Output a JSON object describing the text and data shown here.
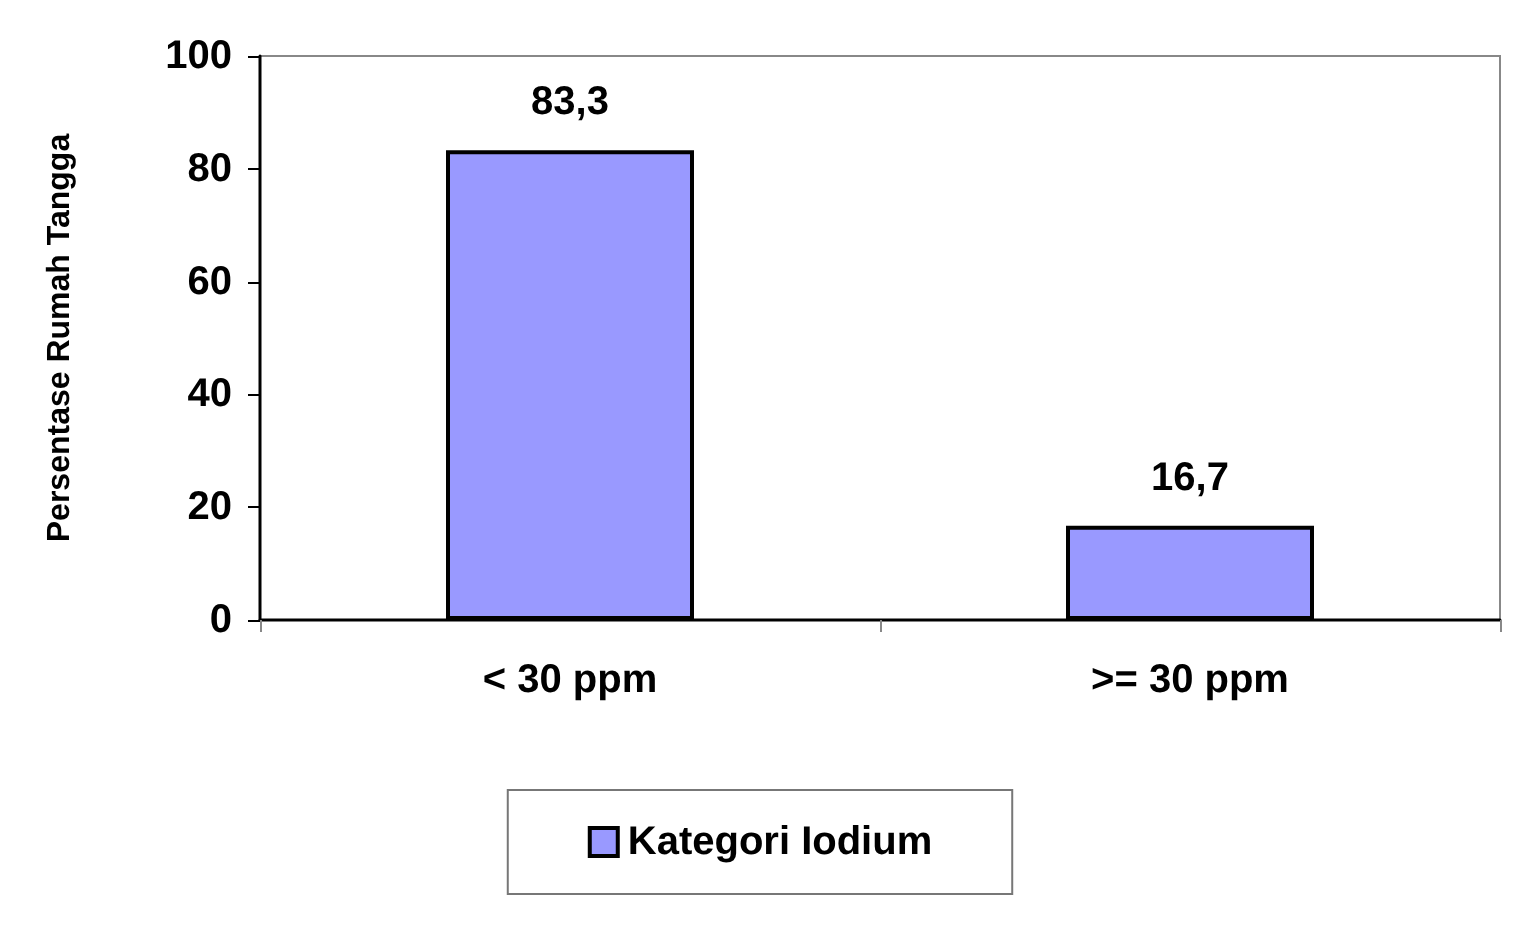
{
  "chart_data": {
    "type": "bar",
    "ylabel": "Persentase Rumah Tangga",
    "categories": [
      "< 30 ppm",
      ">= 30 ppm"
    ],
    "series": [
      {
        "name": "Kategori Iodium",
        "color": "#9999ff",
        "values": [
          83.3,
          16.7
        ],
        "value_labels": [
          "83,3",
          "16,7"
        ]
      }
    ],
    "ylim": [
      0,
      100
    ],
    "yticks": [
      0,
      20,
      40,
      60,
      80,
      100
    ],
    "grid": false,
    "legend": "bottom"
  }
}
